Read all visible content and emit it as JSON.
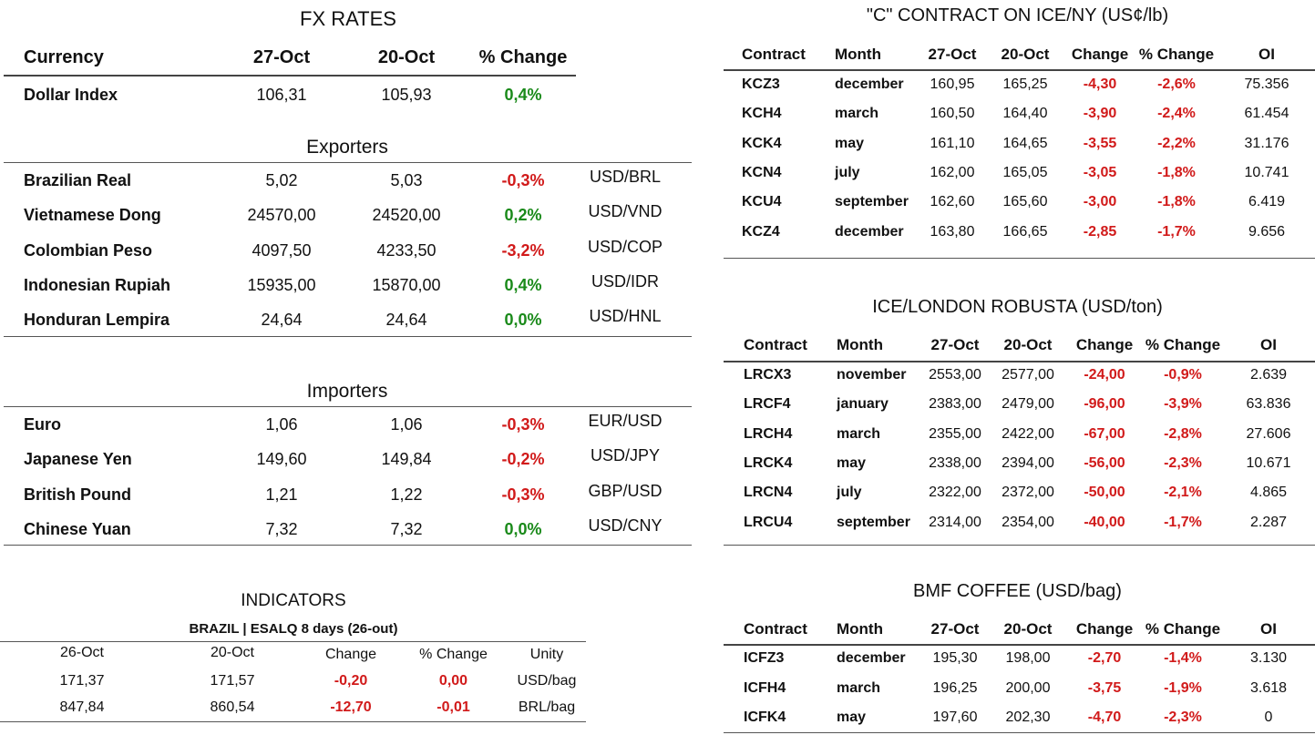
{
  "fx": {
    "title": "FX RATES",
    "headers": [
      "Currency",
      "27-Oct",
      "20-Oct",
      "% Change"
    ],
    "dollar_index": {
      "name": "Dollar Index",
      "v1": "106,31",
      "v2": "105,93",
      "chg": "0,4%",
      "dir": "pos"
    },
    "exporters_title": "Exporters",
    "exporters": [
      {
        "name": "Brazilian Real",
        "v1": "5,02",
        "v2": "5,03",
        "chg": "-0,3%",
        "dir": "neg",
        "pair": "USD/BRL"
      },
      {
        "name": "Vietnamese Dong",
        "v1": "24570,00",
        "v2": "24520,00",
        "chg": "0,2%",
        "dir": "pos",
        "pair": "USD/VND"
      },
      {
        "name": "Colombian Peso",
        "v1": "4097,50",
        "v2": "4233,50",
        "chg": "-3,2%",
        "dir": "neg",
        "pair": "USD/COP"
      },
      {
        "name": "Indonesian Rupiah",
        "v1": "15935,00",
        "v2": "15870,00",
        "chg": "0,4%",
        "dir": "pos",
        "pair": "USD/IDR"
      },
      {
        "name": "Honduran Lempira",
        "v1": "24,64",
        "v2": "24,64",
        "chg": "0,0%",
        "dir": "pos",
        "pair": "USD/HNL"
      }
    ],
    "importers_title": "Importers",
    "importers": [
      {
        "name": "Euro",
        "v1": "1,06",
        "v2": "1,06",
        "chg": "-0,3%",
        "dir": "neg",
        "pair": "EUR/USD"
      },
      {
        "name": "Japanese Yen",
        "v1": "149,60",
        "v2": "149,84",
        "chg": "-0,2%",
        "dir": "neg",
        "pair": "USD/JPY"
      },
      {
        "name": "British Pound",
        "v1": "1,21",
        "v2": "1,22",
        "chg": "-0,3%",
        "dir": "neg",
        "pair": "GBP/USD"
      },
      {
        "name": "Chinese Yuan",
        "v1": "7,32",
        "v2": "7,32",
        "chg": "0,0%",
        "dir": "pos",
        "pair": "USD/CNY"
      }
    ]
  },
  "indicators": {
    "title": "INDICATORS",
    "subtitle": "BRAZIL | ESALQ 8 days (26-out)",
    "headers": [
      "26-Oct",
      "20-Oct",
      "Change",
      "% Change",
      "Unity"
    ],
    "rows": [
      {
        "v1": "171,37",
        "v2": "171,57",
        "chg": "-0,20",
        "pct": "0,00",
        "unit": "USD/bag"
      },
      {
        "v1": "847,84",
        "v2": "860,54",
        "chg": "-12,70",
        "pct": "-0,01",
        "unit": "BRL/bag"
      }
    ]
  },
  "contracts": [
    {
      "title": "\"C\" CONTRACT ON ICE/NY (US¢/lb)",
      "headers": [
        "Contract",
        "Month",
        "27-Oct",
        "20-Oct",
        "Change",
        "% Change",
        "OI"
      ],
      "rows": [
        {
          "code": "KCZ3",
          "month": "december",
          "v1": "160,95",
          "v2": "165,25",
          "chg": "-4,30",
          "pct": "-2,6%",
          "oi": "75.356"
        },
        {
          "code": "KCH4",
          "month": "march",
          "v1": "160,50",
          "v2": "164,40",
          "chg": "-3,90",
          "pct": "-2,4%",
          "oi": "61.454"
        },
        {
          "code": "KCK4",
          "month": "may",
          "v1": "161,10",
          "v2": "164,65",
          "chg": "-3,55",
          "pct": "-2,2%",
          "oi": "31.176"
        },
        {
          "code": "KCN4",
          "month": "july",
          "v1": "162,00",
          "v2": "165,05",
          "chg": "-3,05",
          "pct": "-1,8%",
          "oi": "10.741"
        },
        {
          "code": "KCU4",
          "month": "september",
          "v1": "162,60",
          "v2": "165,60",
          "chg": "-3,00",
          "pct": "-1,8%",
          "oi": "6.419"
        },
        {
          "code": "KCZ4",
          "month": "december",
          "v1": "163,80",
          "v2": "166,65",
          "chg": "-2,85",
          "pct": "-1,7%",
          "oi": "9.656"
        }
      ]
    },
    {
      "title": "ICE/LONDON ROBUSTA (USD/ton)",
      "headers": [
        "Contract",
        "Month",
        "27-Oct",
        "20-Oct",
        "Change",
        "% Change",
        "OI"
      ],
      "rows": [
        {
          "code": "LRCX3",
          "month": "november",
          "v1": "2553,00",
          "v2": "2577,00",
          "chg": "-24,00",
          "pct": "-0,9%",
          "oi": "2.639"
        },
        {
          "code": "LRCF4",
          "month": "january",
          "v1": "2383,00",
          "v2": "2479,00",
          "chg": "-96,00",
          "pct": "-3,9%",
          "oi": "63.836"
        },
        {
          "code": "LRCH4",
          "month": "march",
          "v1": "2355,00",
          "v2": "2422,00",
          "chg": "-67,00",
          "pct": "-2,8%",
          "oi": "27.606"
        },
        {
          "code": "LRCK4",
          "month": "may",
          "v1": "2338,00",
          "v2": "2394,00",
          "chg": "-56,00",
          "pct": "-2,3%",
          "oi": "10.671"
        },
        {
          "code": "LRCN4",
          "month": "july",
          "v1": "2322,00",
          "v2": "2372,00",
          "chg": "-50,00",
          "pct": "-2,1%",
          "oi": "4.865"
        },
        {
          "code": "LRCU4",
          "month": "september",
          "v1": "2314,00",
          "v2": "2354,00",
          "chg": "-40,00",
          "pct": "-1,7%",
          "oi": "2.287"
        }
      ]
    },
    {
      "title": "BMF COFFEE (USD/bag)",
      "headers": [
        "Contract",
        "Month",
        "27-Oct",
        "20-Oct",
        "Change",
        "% Change",
        "OI"
      ],
      "rows": [
        {
          "code": "ICFZ3",
          "month": "december",
          "v1": "195,30",
          "v2": "198,00",
          "chg": "-2,70",
          "pct": "-1,4%",
          "oi": "3.130"
        },
        {
          "code": "ICFH4",
          "month": "march",
          "v1": "196,25",
          "v2": "200,00",
          "chg": "-3,75",
          "pct": "-1,9%",
          "oi": "3.618"
        },
        {
          "code": "ICFK4",
          "month": "may",
          "v1": "197,60",
          "v2": "202,30",
          "chg": "-4,70",
          "pct": "-2,3%",
          "oi": "0"
        }
      ]
    }
  ]
}
